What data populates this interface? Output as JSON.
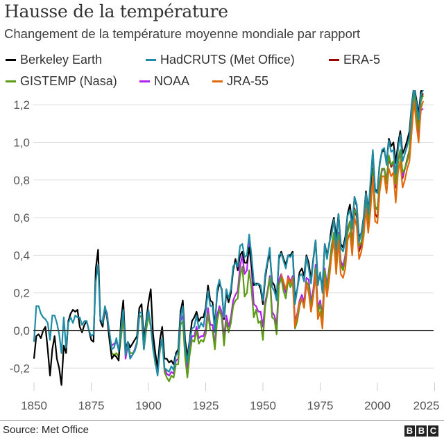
{
  "header": {
    "title": "Hausse de la température",
    "subtitle": "Changement de la température moyenne mondiale par rapport"
  },
  "footer": {
    "source": "Source: Met Office",
    "logo": "BBC"
  },
  "chart_data": {
    "type": "line",
    "title": "Hausse de la température",
    "subtitle": "Changement de la température moyenne mondiale par rapport",
    "xlabel": "",
    "ylabel": "",
    "xlim": [
      1850,
      2028
    ],
    "ylim": [
      -0.3,
      1.32
    ],
    "xticks": [
      1850,
      1875,
      1900,
      1925,
      1950,
      1975,
      2000,
      2025
    ],
    "yticks": [
      -0.2,
      0,
      0.2,
      0.4,
      0.6,
      0.8,
      1.0,
      1.2
    ],
    "ytick_labels": [
      "-0,2",
      "0,0",
      "0,2",
      "0,4",
      "0,6",
      "0,8",
      "1,0",
      "1,2"
    ],
    "grid": "horizontal",
    "legend_position": "top",
    "series": [
      {
        "name": "Berkeley Earth",
        "color": "#000000",
        "start": 1850,
        "values": [
          -0.15,
          -0.03,
          -0.02,
          -0.04,
          0.0,
          0.02,
          -0.1,
          -0.24,
          -0.1,
          -0.03,
          -0.15,
          -0.2,
          -0.29,
          -0.08,
          -0.12,
          0.05,
          0.09,
          0.11,
          0.1,
          0.11,
          0.02,
          -0.01,
          0.03,
          0.05,
          0.0,
          -0.05,
          -0.06,
          0.33,
          0.43,
          0.05,
          0.02,
          0.12,
          0.06,
          -0.05,
          -0.15,
          -0.13,
          -0.14,
          -0.16,
          0.05,
          0.16,
          -0.1,
          -0.06,
          -0.09,
          -0.07,
          -0.05,
          -0.03,
          0.12,
          0.14,
          -0.05,
          0.05,
          0.15,
          0.22,
          -0.02,
          -0.12,
          -0.2,
          -0.05,
          0.02,
          -0.15,
          -0.15,
          -0.17,
          -0.16,
          -0.18,
          -0.12,
          -0.1,
          0.1,
          0.16,
          -0.05,
          -0.14,
          -0.05,
          0.05,
          0.07,
          0.1,
          0.05,
          0.07,
          0.07,
          0.12,
          0.24,
          0.16,
          0.15,
          0.02,
          0.2,
          0.25,
          0.22,
          0.06,
          0.2,
          0.15,
          0.2,
          0.32,
          0.38,
          0.32,
          0.4,
          0.42,
          0.36,
          0.36,
          0.44,
          0.35,
          0.24,
          0.25,
          0.25,
          0.22,
          0.14,
          0.28,
          0.36,
          0.41,
          0.26,
          0.24,
          0.18,
          0.38,
          0.42,
          0.38,
          0.35,
          0.4,
          0.4,
          0.42,
          0.17,
          0.22,
          0.31,
          0.33,
          0.29,
          0.4,
          0.36,
          0.27,
          0.38,
          0.48,
          0.26,
          0.29,
          0.23,
          0.46,
          0.4,
          0.46,
          0.55,
          0.6,
          0.49,
          0.62,
          0.46,
          0.44,
          0.5,
          0.62,
          0.67,
          0.56,
          0.71,
          0.66,
          0.49,
          0.52,
          0.6,
          0.74,
          0.64,
          0.77,
          0.95,
          0.75,
          0.74,
          0.89,
          0.95,
          0.96,
          0.89,
          1.02,
          0.98,
          1.0,
          0.89,
          0.99,
          1.06,
          0.94,
          0.97,
          1.01,
          1.06,
          1.2,
          1.3,
          1.23,
          1.15,
          1.27,
          1.3
        ]
      },
      {
        "name": "HadCRUTS (Met Office)",
        "color": "#1f8ca6",
        "start": 1850,
        "values": [
          -0.06,
          0.13,
          0.13,
          0.09,
          0.07,
          0.06,
          0.04,
          -0.05,
          0.08,
          0.08,
          0.04,
          -0.02,
          -0.12,
          0.07,
          -0.09,
          0.04,
          0.07,
          0.04,
          0.08,
          0.07,
          0.07,
          0.03,
          0.05,
          0.05,
          0.0,
          -0.03,
          -0.02,
          0.26,
          0.35,
          0.06,
          0.04,
          0.13,
          0.07,
          -0.01,
          -0.1,
          -0.09,
          -0.04,
          -0.11,
          0.01,
          0.11,
          -0.13,
          -0.06,
          -0.15,
          -0.13,
          -0.11,
          -0.06,
          0.09,
          0.1,
          -0.1,
          0.04,
          0.11,
          0.03,
          -0.1,
          -0.17,
          -0.24,
          -0.1,
          -0.04,
          -0.2,
          -0.21,
          -0.22,
          -0.19,
          -0.21,
          -0.13,
          -0.12,
          0.07,
          0.13,
          -0.09,
          -0.17,
          -0.06,
          0.01,
          0.02,
          0.08,
          0.01,
          0.04,
          0.02,
          0.1,
          0.21,
          0.13,
          0.13,
          -0.01,
          0.22,
          0.27,
          0.21,
          0.07,
          0.22,
          0.17,
          0.22,
          0.34,
          0.36,
          0.34,
          0.45,
          0.46,
          0.39,
          0.4,
          0.51,
          0.4,
          0.26,
          0.24,
          0.25,
          0.24,
          0.16,
          0.3,
          0.37,
          0.44,
          0.23,
          0.21,
          0.16,
          0.4,
          0.41,
          0.37,
          0.33,
          0.4,
          0.39,
          0.41,
          0.14,
          0.22,
          0.29,
          0.3,
          0.26,
          0.39,
          0.33,
          0.25,
          0.37,
          0.48,
          0.24,
          0.31,
          0.2,
          0.46,
          0.38,
          0.47,
          0.51,
          0.59,
          0.43,
          0.62,
          0.44,
          0.42,
          0.48,
          0.61,
          0.64,
          0.54,
          0.71,
          0.67,
          0.47,
          0.52,
          0.59,
          0.73,
          0.62,
          0.8,
          0.96,
          0.74,
          0.73,
          0.88,
          0.96,
          0.97,
          0.88,
          1.01,
          0.95,
          0.96,
          0.83,
          0.96,
          1.04,
          0.9,
          0.94,
          0.98,
          1.03,
          1.19,
          1.29,
          1.21,
          1.12,
          1.25,
          1.28
        ]
      },
      {
        "name": "ERA-5",
        "color": "#990000",
        "start": 1979,
        "values": [
          0.33,
          0.45,
          0.5,
          0.33,
          0.52,
          0.36,
          0.34,
          0.4,
          0.54,
          0.58,
          0.46,
          0.65,
          0.6,
          0.42,
          0.46,
          0.54,
          0.7,
          0.57,
          0.66,
          0.86,
          0.62,
          0.6,
          0.78,
          0.86,
          0.86,
          0.79,
          0.92,
          0.87,
          0.89,
          0.76,
          0.9,
          0.96,
          0.81,
          0.86,
          0.91,
          0.96,
          1.13,
          1.27,
          1.16,
          1.08,
          1.24,
          1.26
        ]
      },
      {
        "name": "GISTEMP (Nasa)",
        "color": "#5a9a14",
        "start": 1880,
        "values": [
          0.05,
          0.12,
          0.08,
          -0.06,
          -0.12,
          -0.13,
          -0.12,
          -0.14,
          -0.04,
          0.07,
          -0.13,
          -0.07,
          -0.12,
          -0.12,
          -0.11,
          -0.07,
          0.08,
          0.07,
          -0.1,
          0.0,
          0.08,
          0.02,
          -0.08,
          -0.18,
          -0.21,
          -0.11,
          -0.04,
          -0.22,
          -0.25,
          -0.27,
          -0.24,
          -0.25,
          -0.18,
          -0.18,
          0.03,
          0.05,
          -0.14,
          -0.25,
          -0.13,
          -0.05,
          -0.06,
          0.0,
          -0.07,
          -0.05,
          -0.06,
          -0.02,
          0.09,
          0.0,
          0.0,
          -0.1,
          0.05,
          0.11,
          0.07,
          -0.08,
          0.05,
          -0.01,
          0.04,
          0.13,
          0.16,
          0.17,
          0.29,
          0.34,
          0.18,
          0.2,
          0.32,
          0.22,
          0.07,
          0.11,
          0.04,
          0.05,
          -0.05,
          0.13,
          0.2,
          0.28,
          0.07,
          0.06,
          -0.02,
          0.24,
          0.28,
          0.21,
          0.17,
          0.27,
          0.23,
          0.26,
          0.01,
          0.05,
          0.13,
          0.17,
          0.12,
          0.26,
          0.24,
          0.12,
          0.2,
          0.33,
          0.09,
          0.14,
          0.06,
          0.32,
          0.21,
          0.33,
          0.45,
          0.52,
          0.34,
          0.51,
          0.35,
          0.32,
          0.38,
          0.52,
          0.58,
          0.44,
          0.64,
          0.62,
          0.45,
          0.47,
          0.54,
          0.69,
          0.58,
          0.68,
          0.86,
          0.66,
          0.64,
          0.78,
          0.86,
          0.86,
          0.78,
          0.93,
          0.88,
          0.9,
          0.78,
          0.89,
          0.96,
          0.84,
          0.86,
          0.9,
          0.96,
          1.13,
          1.26,
          1.15,
          1.07,
          1.22,
          1.25
        ]
      },
      {
        "name": "NOAA",
        "color": "#b020ee",
        "start": 1880,
        "values": [
          0.06,
          0.12,
          0.09,
          -0.05,
          -0.08,
          -0.07,
          -0.06,
          -0.1,
          -0.02,
          0.08,
          -0.15,
          -0.08,
          -0.14,
          -0.13,
          -0.1,
          -0.06,
          0.07,
          0.08,
          -0.1,
          0.02,
          0.09,
          0.03,
          -0.07,
          -0.16,
          -0.2,
          -0.1,
          -0.05,
          -0.2,
          -0.23,
          -0.24,
          -0.22,
          -0.23,
          -0.16,
          -0.15,
          0.05,
          0.08,
          -0.12,
          -0.2,
          -0.1,
          -0.03,
          -0.03,
          0.02,
          -0.04,
          -0.03,
          -0.03,
          0.01,
          0.12,
          0.03,
          0.03,
          -0.08,
          0.08,
          0.13,
          0.1,
          -0.04,
          0.08,
          0.02,
          0.07,
          0.16,
          0.19,
          0.21,
          0.34,
          0.4,
          0.3,
          0.32,
          0.47,
          0.33,
          0.14,
          0.13,
          0.1,
          0.1,
          0.02,
          0.15,
          0.21,
          0.29,
          0.1,
          0.08,
          0.03,
          0.27,
          0.3,
          0.24,
          0.2,
          0.29,
          0.26,
          0.29,
          0.05,
          0.09,
          0.16,
          0.19,
          0.15,
          0.28,
          0.27,
          0.15,
          0.22,
          0.35,
          0.12,
          0.16,
          0.08,
          0.33,
          0.24,
          0.34,
          0.45,
          0.51,
          0.37,
          0.52,
          0.37,
          0.34,
          0.4,
          0.53,
          0.58,
          0.46,
          0.64,
          0.62,
          0.44,
          0.47,
          0.55,
          0.68,
          0.58,
          0.7,
          0.86,
          0.66,
          0.64,
          0.79,
          0.85,
          0.86,
          0.8,
          0.92,
          0.88,
          0.88,
          0.77,
          0.89,
          0.95,
          0.82,
          0.86,
          0.9,
          0.95,
          1.11,
          1.22,
          1.13,
          1.05,
          1.17,
          1.18
        ]
      },
      {
        "name": "JRA-55",
        "color": "#e0690c",
        "start": 1958,
        "values": [
          0.3,
          0.26,
          0.22,
          0.28,
          0.25,
          0.28,
          0.02,
          0.08,
          0.15,
          0.17,
          0.12,
          0.25,
          0.2,
          0.1,
          0.18,
          0.3,
          0.06,
          0.1,
          0.01,
          0.28,
          0.18,
          0.28,
          0.4,
          0.48,
          0.3,
          0.48,
          0.3,
          0.28,
          0.33,
          0.48,
          0.52,
          0.4,
          0.6,
          0.55,
          0.38,
          0.42,
          0.5,
          0.65,
          0.52,
          0.64,
          0.82,
          0.58,
          0.57,
          0.74,
          0.82,
          0.82,
          0.73,
          0.86,
          0.82,
          0.84,
          0.68,
          0.84,
          0.9,
          0.76,
          0.8,
          0.86,
          0.9,
          1.06,
          1.22,
          1.1,
          1.0,
          1.18,
          1.22
        ]
      }
    ]
  }
}
